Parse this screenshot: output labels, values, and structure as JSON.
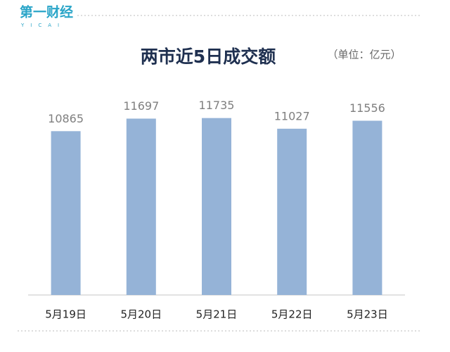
{
  "header": {
    "logo": "第一财经",
    "logo_sub": "YICAI"
  },
  "chart_data": {
    "type": "bar",
    "title": "两市近5日成交额",
    "subtitle": "（单位：亿元）",
    "categories": [
      "5月19日",
      "5月20日",
      "5月21日",
      "5月22日",
      "5月23日"
    ],
    "values": [
      10865,
      11697,
      11735,
      11027,
      11556
    ],
    "color": "#95b3d7",
    "ylim": [
      0,
      12000
    ],
    "grid": false
  }
}
